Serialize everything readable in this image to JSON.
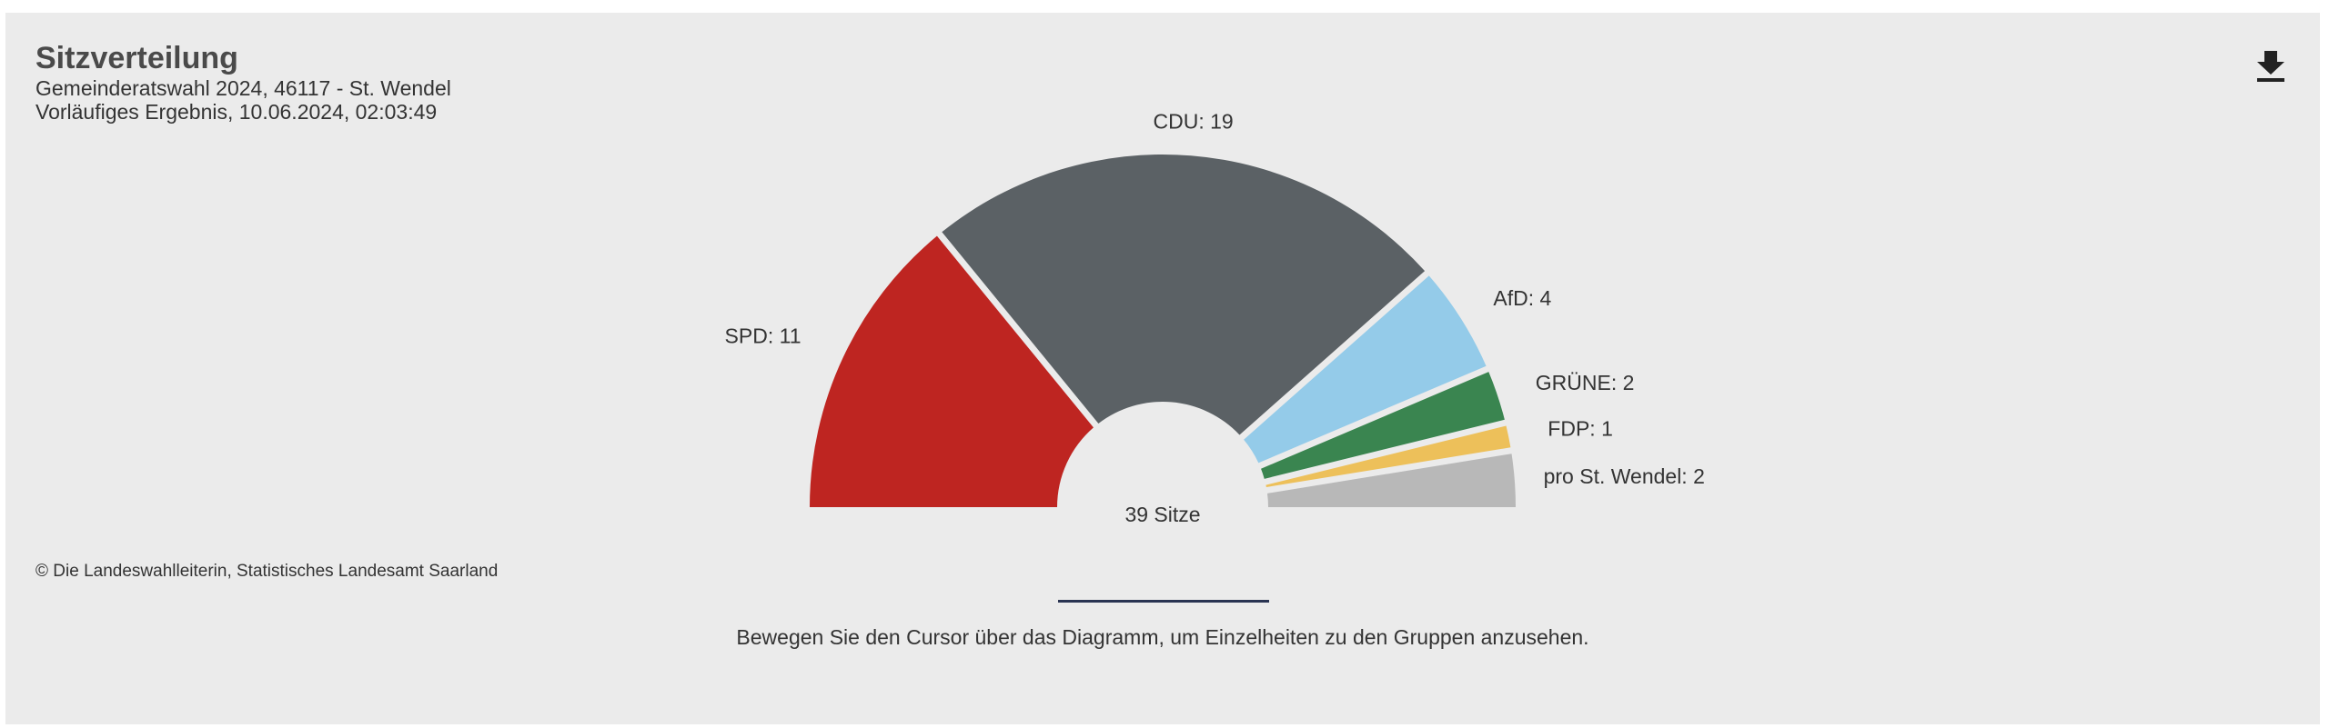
{
  "header": {
    "title": "Sitzverteilung",
    "subtitle_line1": "Gemeinderatswahl 2024, 46117 - St. Wendel",
    "subtitle_line2": "Vorläufiges Ergebnis, 10.06.2024, 02:03:49"
  },
  "toolbar": {
    "download_icon": "download-icon"
  },
  "footer": {
    "copyright": "© Die Landeswahlleiterin, Statistisches Landesamt Saarland",
    "hint": "Bewegen Sie den Cursor über das Diagramm, um Einzelheiten zu den Gruppen anzusehen."
  },
  "chart_data": {
    "type": "pie",
    "variant": "half-donut",
    "title": "Sitzverteilung",
    "center_label": "39 Sitze",
    "total_seats": 39,
    "slices": [
      {
        "name": "SPD",
        "value": 11,
        "label": "SPD: 11",
        "color": "#be2521"
      },
      {
        "name": "CDU",
        "value": 19,
        "label": "CDU: 19",
        "color": "#5b6165"
      },
      {
        "name": "AfD",
        "value": 4,
        "label": "AfD: 4",
        "color": "#94cbe9"
      },
      {
        "name": "GRÜNE",
        "value": 2,
        "label": "GRÜNE: 2",
        "color": "#3a8550"
      },
      {
        "name": "FDP",
        "value": 1,
        "label": "FDP: 1",
        "color": "#edc05a"
      },
      {
        "name": "pro St. Wendel",
        "value": 2,
        "label": "pro St. Wendel: 2",
        "color": "#b8b8b8"
      }
    ]
  }
}
